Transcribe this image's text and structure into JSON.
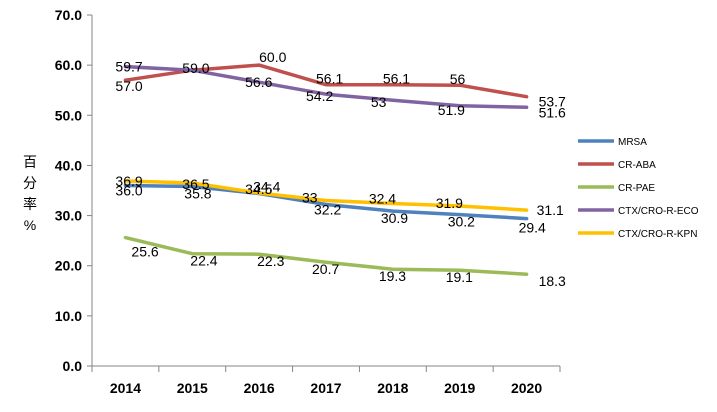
{
  "chart_data": {
    "type": "line",
    "title": "",
    "xlabel": "",
    "ylabel": "百分率%",
    "ylabel_chars": [
      "百",
      "分",
      "率",
      "%"
    ],
    "ylim": [
      0,
      70
    ],
    "ytick_labels": [
      "0.0",
      "10.0",
      "20.0",
      "30.0",
      "40.0",
      "50.0",
      "60.0",
      "70.0"
    ],
    "ytick_values": [
      0,
      10,
      20,
      30,
      40,
      50,
      60,
      70
    ],
    "categories": [
      "2014",
      "2015",
      "2016",
      "2017",
      "2018",
      "2019",
      "2020"
    ],
    "grid": false,
    "legend_position": "right",
    "series": [
      {
        "name": "MRSA",
        "color": "#4f81bd",
        "values": [
          36.0,
          35.8,
          34.4,
          32.2,
          30.9,
          30.2,
          29.4
        ],
        "labels": [
          "36.0",
          "35.8",
          "34.4",
          "32.2",
          "30.9",
          "30.2",
          "29.4"
        ]
      },
      {
        "name": "CR-ABA",
        "color": "#c0504d",
        "values": [
          57.0,
          59.0,
          60.0,
          56.1,
          56.1,
          56,
          53.7
        ],
        "labels": [
          "57.0",
          "59.0",
          "60.0",
          "56.1",
          "56.1",
          "56",
          "53.7"
        ]
      },
      {
        "name": "CR-PAE",
        "color": "#9bbb59",
        "values": [
          25.6,
          22.4,
          22.3,
          20.7,
          19.3,
          19.1,
          18.3
        ],
        "labels": [
          "25.6",
          "22.4",
          "22.3",
          "20.7",
          "19.3",
          "19.1",
          "18.3"
        ]
      },
      {
        "name": "CTX/CRO-R-ECO",
        "color": "#8064a2",
        "values": [
          59.7,
          59.0,
          56.6,
          54.2,
          53,
          51.9,
          51.6
        ],
        "labels": [
          "59.7",
          "",
          "56.6",
          "54.2",
          "53",
          "51.9",
          "51.6"
        ]
      },
      {
        "name": "CTX/CRO-R-KPN",
        "color": "#ffc000",
        "values": [
          36.9,
          36.5,
          34.5,
          33,
          32.4,
          31.9,
          31.1
        ],
        "labels": [
          "36.9",
          "36.5",
          "34.5",
          "33",
          "32.4",
          "31.9",
          "31.1"
        ]
      }
    ]
  }
}
